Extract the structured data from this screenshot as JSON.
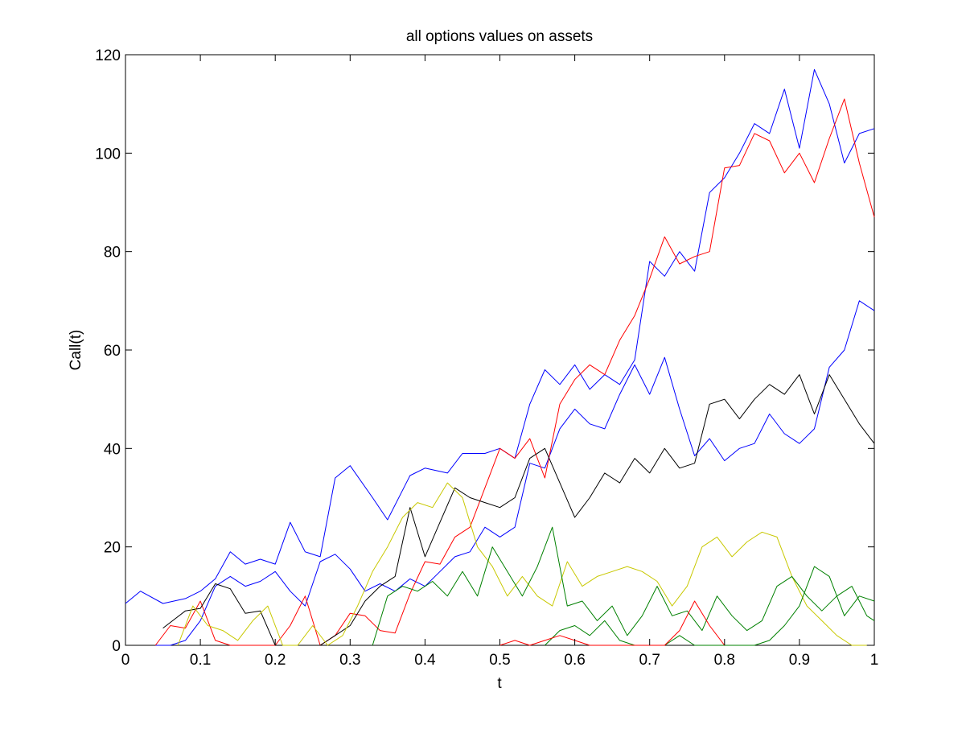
{
  "chart_data": {
    "type": "line",
    "title": "all options values on assets",
    "xlabel": "t",
    "ylabel": "Call(t)",
    "xlim": [
      0,
      1
    ],
    "ylim": [
      0,
      120
    ],
    "xticks": [
      0,
      0.1,
      0.2,
      0.3,
      0.4,
      0.5,
      0.6,
      0.7,
      0.8,
      0.9,
      1
    ],
    "xtick_labels": [
      "0",
      "0.1",
      "0.2",
      "0.3",
      "0.4",
      "0.5",
      "0.6",
      "0.7",
      "0.8",
      "0.9",
      "1"
    ],
    "yticks": [
      0,
      20,
      40,
      60,
      80,
      100,
      120
    ],
    "ytick_labels": [
      "0",
      "20",
      "40",
      "60",
      "80",
      "100",
      "120"
    ],
    "grid": false,
    "legend": "none",
    "series": [
      {
        "color": "#0000ff",
        "x": [
          0,
          0.02,
          0.05,
          0.08,
          0.1,
          0.12,
          0.14,
          0.16,
          0.18,
          0.2,
          0.22,
          0.24,
          0.26,
          0.28,
          0.3,
          0.33,
          0.35,
          0.38,
          0.4,
          0.43,
          0.45,
          0.48,
          0.5,
          0.52,
          0.54,
          0.56,
          0.58,
          0.6,
          0.62,
          0.64,
          0.66,
          0.68,
          0.7,
          0.72,
          0.74,
          0.76,
          0.78,
          0.8,
          0.82,
          0.84,
          0.86,
          0.88,
          0.9,
          0.92,
          0.94,
          0.96,
          0.98,
          1
        ],
        "y": [
          8.5,
          11,
          8.5,
          9.5,
          11,
          13.5,
          19,
          16.5,
          17.5,
          16.5,
          25,
          19,
          18,
          34,
          36.5,
          30,
          25.5,
          34.5,
          36,
          35,
          39,
          39,
          40,
          38,
          49,
          56,
          53,
          57,
          52,
          55,
          53,
          58,
          78,
          75,
          80,
          76,
          92,
          95,
          100,
          106,
          104,
          113,
          101,
          117,
          110,
          98,
          104,
          105
        ]
      },
      {
        "color": "#0000ff",
        "x": [
          0.04,
          0.06,
          0.08,
          0.1,
          0.12,
          0.14,
          0.16,
          0.18,
          0.2,
          0.22,
          0.24,
          0.26,
          0.28,
          0.3,
          0.32,
          0.34,
          0.36,
          0.38,
          0.4,
          0.42,
          0.44,
          0.46,
          0.48,
          0.5,
          0.52,
          0.54,
          0.56,
          0.58,
          0.6,
          0.62,
          0.64,
          0.66,
          0.68,
          0.7,
          0.72,
          0.74,
          0.76,
          0.78,
          0.8,
          0.82,
          0.84,
          0.86,
          0.88,
          0.9,
          0.92,
          0.94,
          0.96,
          0.98,
          1
        ],
        "y": [
          0,
          0,
          1,
          5,
          12,
          14,
          12,
          13,
          15,
          11,
          8,
          17,
          18.5,
          15.5,
          11,
          12.5,
          11,
          13.5,
          12,
          15,
          18,
          19,
          24,
          22,
          24,
          37,
          36,
          44,
          48,
          45,
          44,
          51,
          57,
          51,
          58.5,
          48,
          38.5,
          42,
          37.5,
          40,
          41,
          47,
          43,
          41,
          44,
          56.5,
          60,
          70,
          68
        ]
      },
      {
        "color": "#ff0000",
        "x": [
          0.04,
          0.06,
          0.08,
          0.1,
          0.12,
          0.14,
          0.16,
          0.18,
          0.2,
          0.22,
          0.24,
          0.26,
          0.28,
          0.3,
          0.32,
          0.34,
          0.36,
          0.38,
          0.4,
          0.42,
          0.44,
          0.46,
          0.48,
          0.5,
          0.52,
          0.54,
          0.56,
          0.58,
          0.6,
          0.62,
          0.64,
          0.66,
          0.68,
          0.7,
          0.72,
          0.74,
          0.76,
          0.78,
          0.8,
          0.82,
          0.84,
          0.86,
          0.88,
          0.9,
          0.92,
          0.94,
          0.96,
          0.98,
          1
        ],
        "y": [
          0,
          4,
          3.5,
          9,
          1,
          0,
          0,
          0,
          0,
          4,
          10,
          0,
          2,
          6.5,
          6,
          3,
          2.5,
          10.5,
          17,
          16.5,
          22,
          24,
          32,
          40,
          38,
          42,
          34,
          49,
          54,
          57,
          55,
          62,
          67,
          74.5,
          83,
          77.5,
          79,
          80,
          97,
          97.5,
          104,
          102.5,
          96,
          100,
          94,
          103,
          111,
          98,
          87
        ]
      },
      {
        "color": "#000000",
        "x": [
          0.05,
          0.08,
          0.1,
          0.12,
          0.14,
          0.16,
          0.18,
          0.2,
          0.22,
          0.24,
          0.26,
          0.28,
          0.3,
          0.32,
          0.34,
          0.36,
          0.38,
          0.4,
          0.42,
          0.44,
          0.46,
          0.48,
          0.5,
          0.52,
          0.54,
          0.56,
          0.58,
          0.6,
          0.62,
          0.64,
          0.66,
          0.68,
          0.7,
          0.72,
          0.74,
          0.76,
          0.78,
          0.8,
          0.82,
          0.84,
          0.86,
          0.88,
          0.9,
          0.92,
          0.94,
          0.96,
          0.98,
          1
        ],
        "y": [
          3.5,
          7,
          7.5,
          12.5,
          11.5,
          6.5,
          7,
          0,
          0,
          0,
          0,
          2,
          4,
          9,
          12,
          14,
          28,
          18,
          25,
          32,
          30,
          29,
          28,
          30,
          38,
          40,
          33,
          26,
          30,
          35,
          33,
          38,
          35,
          40,
          36,
          37,
          49,
          50,
          46,
          50,
          53,
          51,
          55,
          47,
          55,
          50,
          45,
          41
        ]
      },
      {
        "color": "#c8c800",
        "x": [
          0.07,
          0.09,
          0.11,
          0.13,
          0.15,
          0.17,
          0.19,
          0.21,
          0.23,
          0.25,
          0.27,
          0.29,
          0.31,
          0.33,
          0.35,
          0.37,
          0.39,
          0.41,
          0.43,
          0.45,
          0.47,
          0.49,
          0.51,
          0.53,
          0.55,
          0.57,
          0.59,
          0.61,
          0.63,
          0.65,
          0.67,
          0.69,
          0.71,
          0.73,
          0.75,
          0.77,
          0.79,
          0.81,
          0.83,
          0.85,
          0.87,
          0.89,
          0.91,
          0.93,
          0.95,
          0.97,
          0.99
        ],
        "y": [
          0,
          8,
          4,
          3,
          1,
          5,
          8,
          0,
          0,
          4,
          0,
          2,
          8,
          15,
          20,
          26,
          29,
          28,
          33,
          30,
          20,
          16,
          10,
          14,
          10,
          8,
          17,
          12,
          14,
          15,
          16,
          15,
          13,
          8,
          12,
          20,
          22,
          18,
          21,
          23,
          22,
          14,
          8,
          5,
          2,
          0,
          0
        ]
      },
      {
        "color": "#008000",
        "x": [
          0.33,
          0.35,
          0.37,
          0.39,
          0.41,
          0.43,
          0.45,
          0.47,
          0.49,
          0.51,
          0.53,
          0.55,
          0.57,
          0.59,
          0.61,
          0.63,
          0.65,
          0.67,
          0.69,
          0.71,
          0.73,
          0.75,
          0.77,
          0.79,
          0.81,
          0.83,
          0.85,
          0.87,
          0.89,
          0.91,
          0.93,
          0.95,
          0.97,
          0.99,
          1
        ],
        "y": [
          0,
          10,
          12,
          11,
          13,
          10,
          15,
          10,
          20,
          15,
          10,
          16,
          24,
          8,
          9,
          5,
          8,
          2,
          6,
          12,
          6,
          7,
          3,
          10,
          6,
          3,
          5,
          12,
          14,
          10,
          7,
          10,
          12,
          6,
          5
        ]
      },
      {
        "color": "#008000",
        "x": [
          0.56,
          0.58,
          0.6,
          0.62,
          0.64,
          0.66,
          0.68,
          0.7,
          0.72,
          0.74,
          0.76,
          0.78,
          0.8,
          0.82,
          0.84,
          0.86,
          0.88,
          0.9,
          0.92,
          0.94,
          0.96,
          0.98,
          1
        ],
        "y": [
          0,
          3,
          4,
          2,
          5,
          1,
          0,
          0,
          0,
          2,
          0,
          0,
          0,
          0,
          0,
          1,
          4,
          8,
          16,
          14,
          6,
          10,
          9
        ]
      },
      {
        "color": "#ff0000",
        "x": [
          0.5,
          0.52,
          0.54,
          0.56,
          0.58,
          0.6,
          0.62,
          0.64,
          0.66,
          0.68,
          0.7,
          0.72,
          0.74,
          0.76,
          0.78,
          0.8
        ],
        "y": [
          0,
          1,
          0,
          1,
          2,
          1,
          0,
          0,
          0,
          0,
          0,
          0,
          3,
          9,
          4,
          0
        ]
      }
    ]
  }
}
